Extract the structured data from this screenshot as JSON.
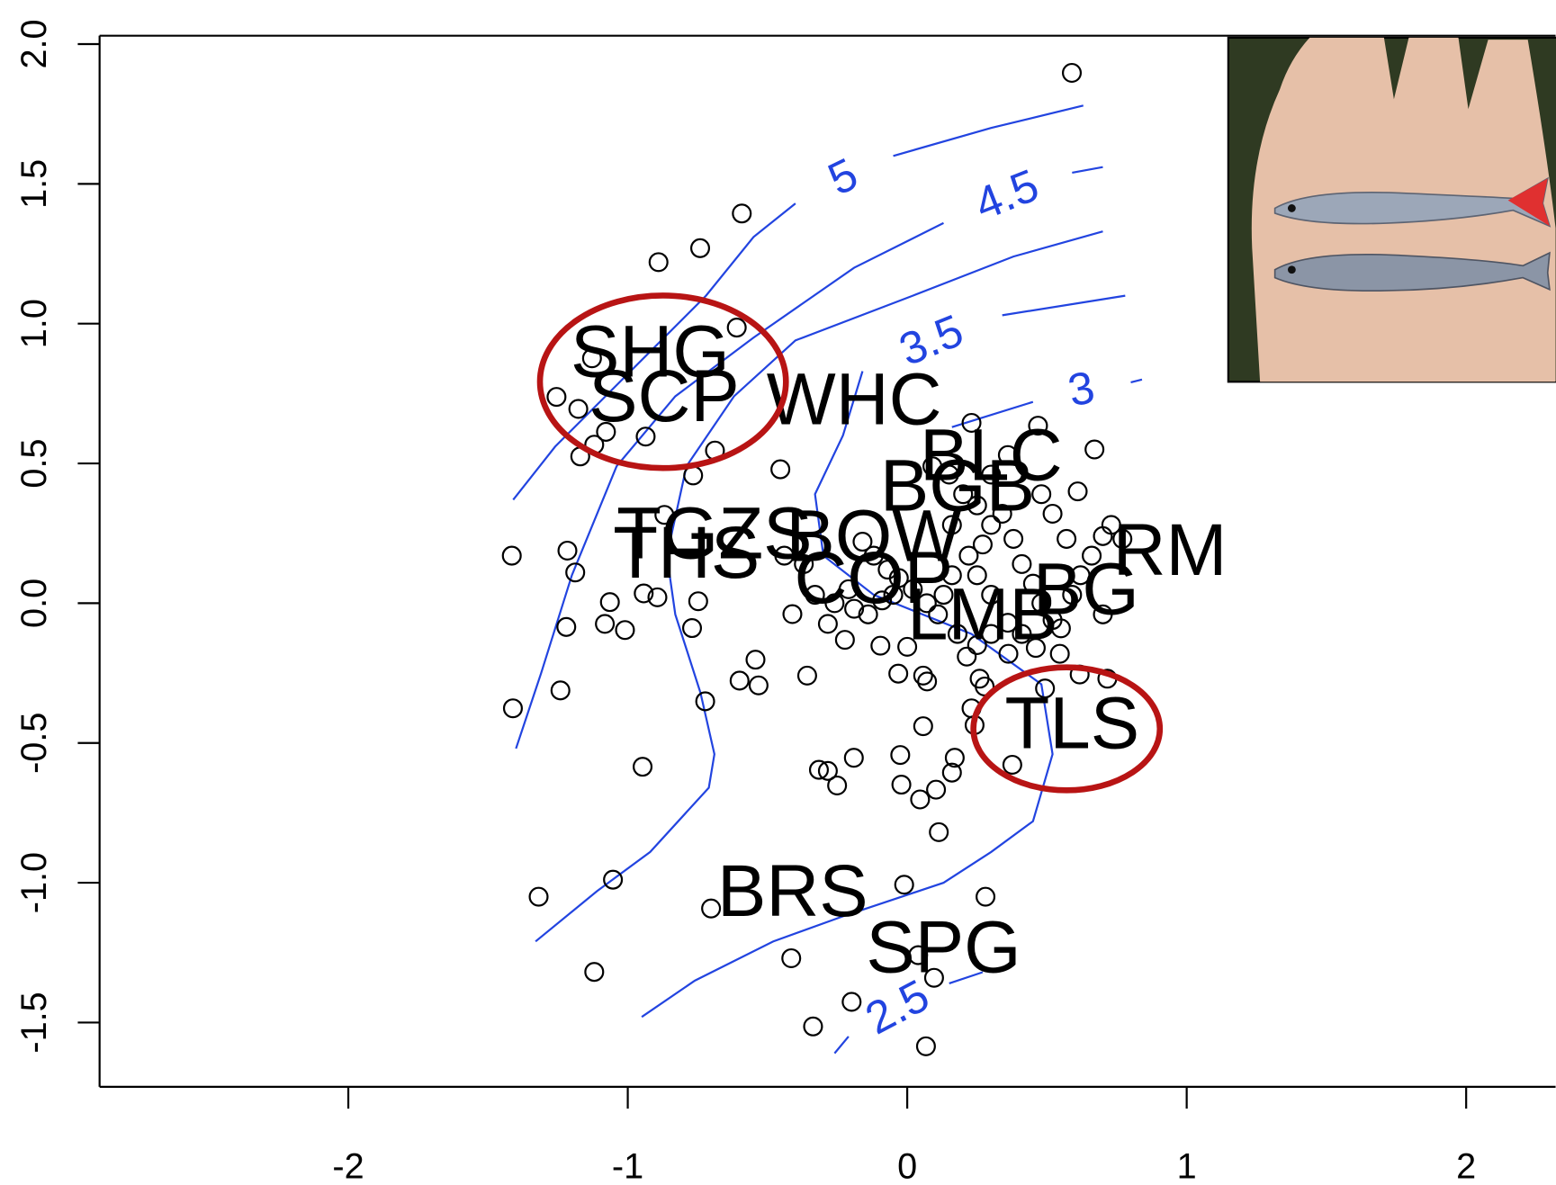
{
  "chart_data": {
    "type": "scatter",
    "xlim": [
      -2.89,
      2.32
    ],
    "ylim": [
      -1.73,
      2.03
    ],
    "xticks": [
      -2,
      -1,
      0,
      1,
      2
    ],
    "yticks": [
      {
        "value": 2,
        "label": "2.0"
      },
      1.5,
      {
        "value": 1,
        "label": "1.0"
      },
      0.5,
      {
        "value": 0,
        "label": "0.0"
      },
      -0.5,
      {
        "value": -1,
        "label": "-1.0"
      },
      -1.5
    ],
    "point_color": "#000000",
    "contour_color": "#2244e0",
    "x": [
      0.589,
      -0.592,
      -0.741,
      -0.89,
      -0.61,
      -1.128,
      -1.255,
      -1.177,
      -1.078,
      -1.12,
      -1.17,
      -0.936,
      -0.688,
      -0.454,
      -0.766,
      0.23,
      0.468,
      0.67,
      -1.415,
      -1.216,
      -1.188,
      -1.064,
      -1.082,
      -1.01,
      -1.22,
      -0.943,
      -0.894,
      -0.748,
      -0.77,
      -0.869,
      -0.411,
      -0.284,
      -0.543,
      -0.6,
      -0.532,
      -0.358,
      -0.723,
      -1.241,
      -1.411,
      -0.947,
      -0.316,
      -0.284,
      -0.191,
      -0.251,
      -0.025,
      -0.021,
      0.103,
      0.046,
      0.17,
      0.16,
      0.113,
      0.057,
      -0.032,
      0.057,
      0.071,
      -0.096,
      0,
      -0.223,
      0.213,
      0.259,
      0.277,
      0.23,
      0.241,
      0.376,
      0.493,
      0.617,
      0.716,
      0.546,
      0.362,
      -1.319,
      -1.053,
      -0.702,
      -0.011,
      0.28,
      -1.12,
      -0.415,
      0.039,
      0.096,
      -0.199,
      -0.337,
      0.067,
      -0.16,
      -0.12,
      -0.07,
      -0.03,
      0.02,
      0.07,
      0.13,
      0.16,
      0.22,
      0.27,
      0.3,
      0.34,
      0.38,
      0.41,
      0.45,
      0.48,
      0.52,
      0.55,
      0.59,
      0.62,
      0.66,
      0.7,
      0.73,
      0.77,
      0.48,
      0.52,
      0.57,
      0.61,
      0.09,
      0.15,
      0.2,
      0.25,
      0.3,
      0.36,
      -0.05,
      -0.09,
      -0.14,
      -0.19,
      -0.21,
      -0.37,
      -0.44,
      -0.33,
      -0.26,
      0.11,
      0.18,
      0.25,
      0.3,
      0.36,
      0.41,
      0.46,
      0.7,
      0.3,
      0.16,
      0.25
    ],
    "values": [
      1.897,
      1.394,
      1.27,
      1.22,
      0.986,
      0.876,
      0.738,
      0.695,
      0.613,
      0.567,
      0.525,
      0.596,
      0.546,
      0.479,
      0.457,
      0.645,
      0.635,
      0.55,
      0.17,
      0.188,
      0.11,
      0.004,
      -0.074,
      -0.096,
      -0.085,
      0.035,
      0.021,
      0.007,
      -0.089,
      0.316,
      -0.039,
      -0.074,
      -0.202,
      -0.277,
      -0.294,
      -0.259,
      -0.351,
      -0.312,
      -0.376,
      -0.585,
      -0.596,
      -0.6,
      -0.553,
      -0.652,
      -0.543,
      -0.649,
      -0.667,
      -0.702,
      -0.553,
      -0.606,
      -0.819,
      -0.44,
      -0.252,
      -0.259,
      -0.28,
      -0.152,
      -0.156,
      -0.131,
      -0.191,
      -0.27,
      -0.298,
      -0.376,
      -0.436,
      -0.578,
      -0.305,
      -0.255,
      -0.27,
      -0.181,
      -0.181,
      -1.05,
      -0.989,
      -1.092,
      -1.007,
      -1.05,
      -1.319,
      -1.27,
      -1.259,
      -1.34,
      -1.426,
      -1.514,
      -1.585,
      0.22,
      0.17,
      0.12,
      0.09,
      0.05,
      0.0,
      0.03,
      0.1,
      0.17,
      0.21,
      0.28,
      0.32,
      0.23,
      0.14,
      0.07,
      0.0,
      -0.06,
      -0.09,
      0.03,
      0.1,
      0.17,
      0.24,
      0.28,
      0.23,
      0.39,
      0.32,
      0.23,
      0.4,
      0.49,
      0.46,
      0.39,
      0.35,
      0.46,
      0.53,
      0.03,
      0.01,
      -0.04,
      -0.02,
      0.05,
      0.14,
      0.17,
      0.03,
      0.0,
      -0.04,
      -0.11,
      -0.15,
      -0.11,
      -0.07,
      -0.11,
      -0.16,
      -0.04,
      0.03,
      0.28,
      0.1
    ],
    "point_labels": [
      {
        "text": "SHG",
        "x": -0.92,
        "y": 0.88
      },
      {
        "text": "SCP",
        "x": -0.87,
        "y": 0.72
      },
      {
        "text": "WHC",
        "x": -0.19,
        "y": 0.71
      },
      {
        "text": "BLC",
        "x": 0.3,
        "y": 0.51
      },
      {
        "text": "BGB",
        "x": 0.18,
        "y": 0.4
      },
      {
        "text": "TGZS",
        "x": -0.69,
        "y": 0.23
      },
      {
        "text": "THS",
        "x": -0.79,
        "y": 0.16
      },
      {
        "text": "BOW",
        "x": -0.12,
        "y": 0.22
      },
      {
        "text": "COP",
        "x": -0.12,
        "y": 0.07
      },
      {
        "text": "RM",
        "x": 0.94,
        "y": 0.17
      },
      {
        "text": "BG",
        "x": 0.64,
        "y": 0.03
      },
      {
        "text": "LMB",
        "x": 0.27,
        "y": -0.06
      },
      {
        "text": "TLS",
        "x": 0.59,
        "y": -0.45
      },
      {
        "text": "BRS",
        "x": -0.41,
        "y": -1.05
      },
      {
        "text": "SPG",
        "x": 0.13,
        "y": -1.25
      }
    ],
    "contours": [
      {
        "name": "5",
        "x": [
          -1.41,
          -1.26,
          -1.08,
          -0.9,
          -0.72,
          -0.55,
          -0.4,
          null,
          -0.05,
          0.3,
          0.63
        ],
        "y": [
          0.37,
          0.56,
          0.74,
          0.92,
          1.1,
          1.31,
          1.43,
          null,
          1.6,
          1.7,
          1.78
        ]
      },
      {
        "name": "4.5",
        "x": [
          -1.4,
          -1.31,
          -1.2,
          -1.04,
          -0.83,
          -0.55,
          -0.19,
          0.13,
          null,
          0.59,
          0.7
        ],
        "y": [
          -0.52,
          -0.25,
          0.1,
          0.49,
          0.74,
          0.95,
          1.2,
          1.36,
          null,
          1.54,
          1.56
        ]
      },
      {
        "x": [
          -1.33,
          -1.11,
          -0.92,
          -0.71,
          -0.69,
          -0.74,
          -0.83,
          -0.86,
          -0.79,
          -0.62,
          -0.4,
          0.02,
          0.38,
          0.7
        ],
        "y": [
          -1.21,
          -1.03,
          -0.89,
          -0.66,
          -0.54,
          -0.32,
          -0.04,
          0.17,
          0.49,
          0.74,
          0.94,
          1.1,
          1.24,
          1.33
        ]
      },
      {
        "name": "3.5",
        "x": [
          -0.95,
          -0.76,
          -0.48,
          -0.23,
          0.13,
          0.3,
          0.45,
          0.52,
          0.48,
          0.23,
          -0.12,
          -0.3,
          -0.33,
          -0.23,
          -0.16,
          null,
          0.34,
          0.78
        ],
        "y": [
          -1.48,
          -1.35,
          -1.21,
          -1.12,
          -1.0,
          -0.89,
          -0.78,
          -0.54,
          -0.29,
          -0.11,
          0.03,
          0.17,
          0.39,
          0.6,
          0.83,
          null,
          1.03,
          1.1
        ]
      },
      {
        "name": "3",
        "x": [
          0.16,
          0.45,
          null,
          0.8,
          0.84
        ],
        "y": [
          0.63,
          0.72,
          null,
          0.79,
          0.8
        ]
      },
      {
        "name": "2.5",
        "x": [
          -0.26,
          -0.21,
          null,
          0.15,
          0.27
        ],
        "y": [
          -1.61,
          -1.55,
          null,
          -1.36,
          -1.32
        ]
      }
    ]
  }
}
